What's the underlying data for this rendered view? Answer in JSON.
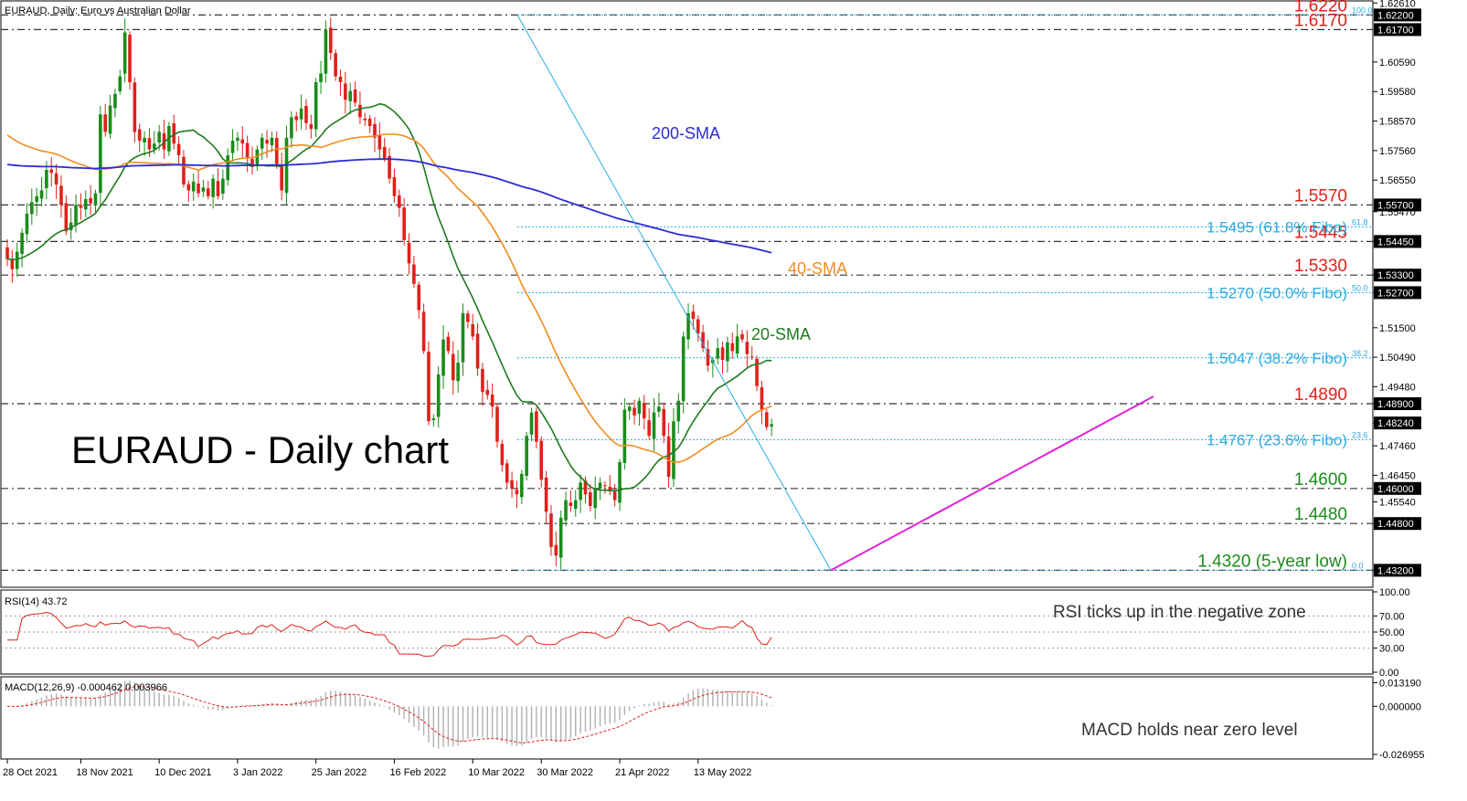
{
  "chart_data": {
    "type": "candlestick",
    "header": "EURAUD, Daily:  Euro vs Australian Dollar",
    "title": "EURAUD - Daily chart",
    "price_axis": {
      "ylim": [
        1.4265,
        1.6265
      ],
      "ticks": [
        "1.62610",
        "1.60590",
        "1.59580",
        "1.58570",
        "1.57560",
        "1.56550",
        "1.55470",
        "1.54450",
        "1.53300",
        "1.52700",
        "1.51500",
        "1.50490",
        "1.49480",
        "1.48900",
        "1.48240",
        "1.47460",
        "1.46450",
        "1.45540",
        "1.44800",
        "1.43200"
      ]
    },
    "x_tick_labels": [
      {
        "label": "28 Oct 2021",
        "index": 0
      },
      {
        "label": "18 Nov 2021",
        "index": 15
      },
      {
        "label": "10 Dec 2021",
        "index": 31
      },
      {
        "label": "3 Jan 2022",
        "index": 47
      },
      {
        "label": "25 Jan 2022",
        "index": 63
      },
      {
        "label": "16 Feb 2022",
        "index": 79
      },
      {
        "label": "10 Mar 2022",
        "index": 95
      },
      {
        "label": "30 Mar 2022",
        "index": 109
      },
      {
        "label": "21 Apr 2022",
        "index": 125
      },
      {
        "label": "13 May 2022",
        "index": 141
      }
    ],
    "levels": [
      {
        "label": "1.6220",
        "value": 1.622,
        "color": "#e0201b"
      },
      {
        "label": "1.6170",
        "value": 1.617,
        "color": "#e0201b"
      },
      {
        "label": "1.5570",
        "value": 1.557,
        "color": "#e0201b"
      },
      {
        "label": "1.5445",
        "value": 1.5445,
        "color": "#e0201b"
      },
      {
        "label": "1.5330",
        "value": 1.533,
        "color": "#e0201b"
      },
      {
        "label": "1.4890",
        "value": 1.489,
        "color": "#e0201b"
      },
      {
        "label": "1.4600",
        "value": 1.46,
        "color": "#1a8c1a"
      },
      {
        "label": "1.4480",
        "value": 1.448,
        "color": "#1a8c1a"
      },
      {
        "label": "1.4320 (5-year low)",
        "value": 1.432,
        "color": "#1a8c1a"
      }
    ],
    "fibo": [
      {
        "label": "1.5495 (61.8% Fibo)",
        "value": 1.5495,
        "tag": "61.8"
      },
      {
        "label": "1.5270 (50.0% Fibo)",
        "value": 1.527,
        "tag": "50.0"
      },
      {
        "label": "1.5047 (38.2% Fibo)",
        "value": 1.5047,
        "tag": "38.2"
      },
      {
        "label": "1.4767 (23.6% Fibo)",
        "value": 1.4767,
        "tag": "23.6"
      },
      {
        "label": "1.6220",
        "value": 1.622,
        "tag": "100.0"
      },
      {
        "label": "1.4320",
        "value": 1.432,
        "tag": "0.0"
      }
    ],
    "axis_boxes": [
      {
        "label": "1.62200",
        "value": 1.622
      },
      {
        "label": "1.61700",
        "value": 1.617
      },
      {
        "label": "1.55700",
        "value": 1.557
      },
      {
        "label": "1.54450",
        "value": 1.5445
      },
      {
        "label": "1.53300",
        "value": 1.533
      },
      {
        "label": "1.52700",
        "value": 1.527
      },
      {
        "label": "1.48900",
        "value": 1.489
      },
      {
        "label": "1.48240",
        "value": 1.4824
      },
      {
        "label": "1.46000",
        "value": 1.46
      },
      {
        "label": "1.44800",
        "value": 1.448
      },
      {
        "label": "1.43200",
        "value": 1.432
      }
    ],
    "sma_labels": {
      "sma200": "200-SMA",
      "sma40": "40-SMA",
      "sma20": "20-SMA"
    },
    "colors": {
      "up": "#1a8c1a",
      "down": "#e0201b",
      "sma20": "#1f7a1f",
      "sma40": "#f08c1e",
      "sma200": "#2b2bd6",
      "trend": "#e024d8",
      "fibo": "#29abe2"
    },
    "closes": [
      1.5385,
      1.535,
      1.541,
      1.5475,
      1.554,
      1.558,
      1.56,
      1.562,
      1.569,
      1.568,
      1.564,
      1.557,
      1.548,
      1.551,
      1.557,
      1.556,
      1.559,
      1.5575,
      1.561,
      1.588,
      1.582,
      1.591,
      1.595,
      1.601,
      1.616,
      1.599,
      1.582,
      1.579,
      1.58,
      1.576,
      1.578,
      1.582,
      1.576,
      1.584,
      1.578,
      1.574,
      1.564,
      1.562,
      1.565,
      1.561,
      1.563,
      1.56,
      1.566,
      1.56,
      1.566,
      1.574,
      1.579,
      1.58,
      1.578,
      1.573,
      1.57,
      1.576,
      1.58,
      1.578,
      1.58,
      1.571,
      1.562,
      1.58,
      1.587,
      1.586,
      1.59,
      1.585,
      1.583,
      1.599,
      1.602,
      1.617,
      1.609,
      1.601,
      1.599,
      1.593,
      1.596,
      1.592,
      1.587,
      1.586,
      1.584,
      1.58,
      1.576,
      1.573,
      1.566,
      1.56,
      1.556,
      1.545,
      1.537,
      1.53,
      1.521,
      1.507,
      1.483,
      1.484,
      1.499,
      1.511,
      1.507,
      1.497,
      1.503,
      1.52,
      1.517,
      1.512,
      1.501,
      1.493,
      1.492,
      1.488,
      1.476,
      1.468,
      1.462,
      1.46,
      1.458,
      1.465,
      1.478,
      1.486,
      1.476,
      1.463,
      1.452,
      1.44,
      1.437,
      1.45,
      1.456,
      1.454,
      1.456,
      1.462,
      1.458,
      1.454,
      1.46,
      1.462,
      1.461,
      1.459,
      1.456,
      1.469,
      1.487,
      1.488,
      1.485,
      1.49,
      1.484,
      1.478,
      1.486,
      1.488,
      1.478,
      1.464,
      1.483,
      1.49,
      1.512,
      1.52,
      1.518,
      1.513,
      1.508,
      1.502,
      1.504,
      1.508,
      1.504,
      1.51,
      1.507,
      1.512,
      1.511,
      1.506,
      1.505,
      1.495,
      1.487,
      1.481,
      1.482
    ],
    "rsi": {
      "label": "RSI(14) 43.72",
      "ylim": [
        0,
        100
      ],
      "ticks": [
        "100.00",
        "70.00",
        "50.00",
        "30.00",
        "0.00"
      ],
      "levels": [
        70,
        50,
        30
      ],
      "color": "#e0201b",
      "last": 43.72
    },
    "macd": {
      "label": "MACD(12,26,9) -0.000462 0.003966",
      "ticks": [
        "0.013190",
        "0.000000",
        "-0.026955"
      ],
      "ylim": [
        -0.0285,
        0.0155
      ],
      "main": -0.000462,
      "signal": 0.003966,
      "color_hist": "#b0b0b0",
      "color_signal": "#e0201b"
    }
  },
  "annotations": {
    "rsi_note": "RSI ticks up in the negative zone",
    "macd_note": "MACD holds near zero level"
  }
}
